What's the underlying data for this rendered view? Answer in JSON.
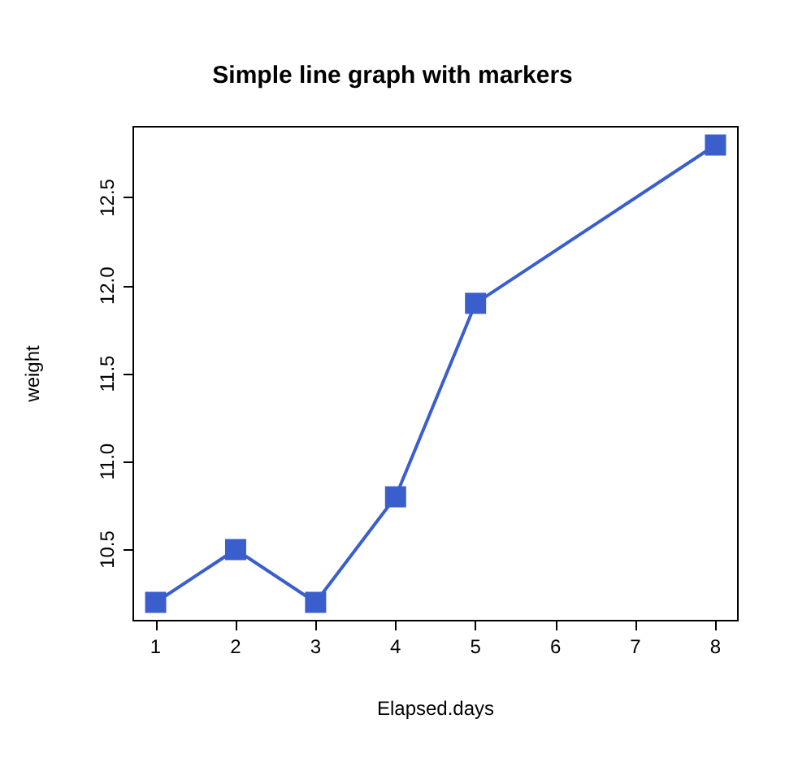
{
  "chart_data": {
    "type": "line",
    "title": "Simple line graph with markers",
    "xlabel": "Elapsed.days",
    "ylabel": "weight",
    "x": [
      1,
      2,
      3,
      4,
      5,
      8
    ],
    "series": [
      {
        "color": "#3a5fcd",
        "values": [
          10.2,
          10.5,
          10.2,
          10.8,
          11.9,
          12.8
        ]
      }
    ],
    "xlim": [
      0.72,
      8.28
    ],
    "xticks": [
      1,
      2,
      3,
      4,
      5,
      6,
      7,
      8
    ],
    "ylim": [
      10.096,
      12.904
    ],
    "yticks": [
      {
        "value": 10.5,
        "label": "10.5"
      },
      {
        "value": 11,
        "label": "11.0"
      },
      {
        "value": 11.5,
        "label": "11.5"
      },
      {
        "value": 12,
        "label": "12.0"
      },
      {
        "value": 12.5,
        "label": "12.5"
      }
    ],
    "grid": false,
    "marker": "square",
    "line_style": "solid"
  }
}
